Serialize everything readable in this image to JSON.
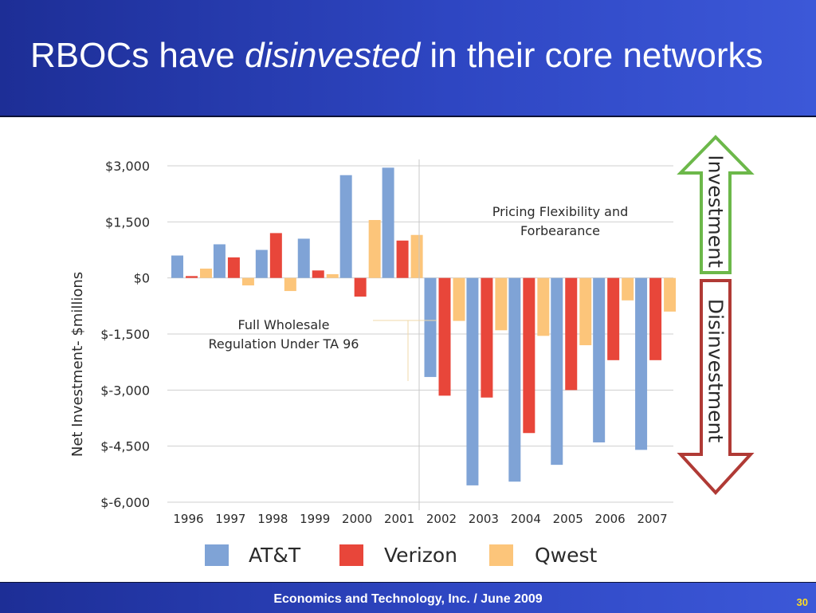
{
  "slide": {
    "title_prefix": "RBOCs have ",
    "title_emphasis": "disinvested",
    "title_suffix": " in their core networks",
    "footer": "Economics and Technology, Inc.  /  June 2009",
    "page_number": "30"
  },
  "chart_data": {
    "type": "bar",
    "ylabel": "Net Investment- $millions",
    "ylim": [
      -6000,
      3000
    ],
    "yticks": [
      3000,
      1500,
      0,
      -1500,
      -3000,
      -4500,
      -6000
    ],
    "ytick_labels": [
      "$3,000",
      "$1,500",
      "$0",
      "$-1,500",
      "$-3,000",
      "$-4,500",
      "$-6,000"
    ],
    "grid": true,
    "legend_position": "bottom",
    "categories": [
      "1996",
      "1997",
      "1998",
      "1999",
      "2000",
      "2001",
      "2002",
      "2003",
      "2004",
      "2005",
      "2006",
      "2007"
    ],
    "series": [
      {
        "name": "AT&T",
        "color": "#7fa3d6",
        "values": [
          600,
          900,
          750,
          1050,
          2750,
          2950,
          -2650,
          -5550,
          -5450,
          -5000,
          -4400,
          -4600
        ]
      },
      {
        "name": "Verizon",
        "color": "#e8463a",
        "values": [
          50,
          550,
          1200,
          200,
          -500,
          1000,
          -3150,
          -3200,
          -4150,
          -3000,
          -2200,
          -2200
        ]
      },
      {
        "name": "Qwest",
        "color": "#fcc57a",
        "values": [
          250,
          -200,
          -350,
          100,
          1550,
          1150,
          -1150,
          -1400,
          -1550,
          -1800,
          -600,
          -900
        ]
      }
    ],
    "annotations": [
      {
        "lines": [
          "Full Wholesale",
          "Regulation Under TA 96"
        ]
      },
      {
        "lines": [
          "Pricing Flexibility and",
          "Forbearance"
        ]
      }
    ],
    "arrows": {
      "up": {
        "label": "Investment",
        "color": "#6cb84a"
      },
      "down": {
        "label": "Disinvestment",
        "color": "#b03a35"
      }
    }
  }
}
